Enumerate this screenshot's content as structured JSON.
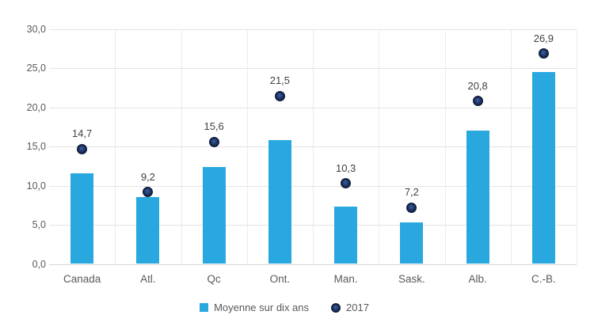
{
  "chart_data": {
    "type": "bar",
    "title": "",
    "xlabel": "",
    "ylabel": "",
    "categories": [
      "Canada",
      "Atl.",
      "Qc",
      "Ont.",
      "Man.",
      "Sask.",
      "Alb.",
      "C.-B."
    ],
    "series": [
      {
        "name": "Moyenne sur dix ans",
        "type": "bar",
        "values": [
          11.6,
          8.6,
          12.4,
          15.8,
          7.3,
          5.3,
          17.0,
          24.5
        ]
      },
      {
        "name": "2017",
        "type": "point",
        "values": [
          14.7,
          9.2,
          15.6,
          21.5,
          10.3,
          7.2,
          20.8,
          26.9
        ],
        "labels": [
          "14,7",
          "9,2",
          "15,6",
          "21,5",
          "10,3",
          "7,2",
          "20,8",
          "26,9"
        ]
      }
    ],
    "ylim": [
      0,
      30
    ],
    "ytick_step": 5,
    "ytick_labels": [
      "0,0",
      "5,0",
      "10,0",
      "15,0",
      "20,0",
      "25,0",
      "30,0"
    ],
    "grid": true,
    "legend_position": "bottom"
  },
  "legend": {
    "items": [
      {
        "label": "Moyenne sur dix ans",
        "marker": "square"
      },
      {
        "label": "2017",
        "marker": "circle"
      }
    ]
  },
  "colors": {
    "background": "#ffffff",
    "bar": "#29a8e0",
    "dot_fill": "#22396b",
    "dot_border": "#121f3d",
    "gridline_h": "#e4e4e4",
    "gridline_v": "#ececec",
    "axis_line": "#d6d6d6",
    "axis_text": "#595959",
    "data_label": "#404040"
  }
}
